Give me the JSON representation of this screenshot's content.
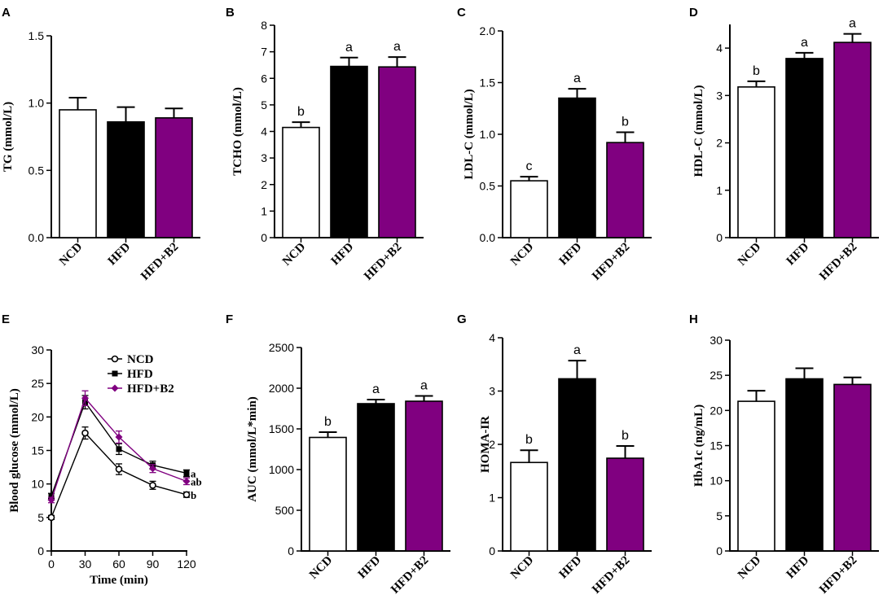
{
  "chart_data": [
    {
      "panel": "A",
      "type": "bar",
      "categories": [
        "NCD",
        "HFD",
        "HFD+B2"
      ],
      "values": [
        0.95,
        0.86,
        0.89
      ],
      "errors": [
        0.09,
        0.11,
        0.07
      ],
      "letters": [
        "",
        "",
        ""
      ],
      "ylabel": "TG (mmol/L)",
      "ylim": [
        0,
        1.5
      ],
      "yticks": [
        "0.0",
        "0.5",
        "1.0",
        "1.5"
      ],
      "tick_values": [
        0,
        0.5,
        1.0,
        1.5
      ],
      "colors": [
        "#ffffff",
        "#000000",
        "#800080"
      ]
    },
    {
      "panel": "B",
      "type": "bar",
      "categories": [
        "NCD",
        "HFD",
        "HFD+B2"
      ],
      "values": [
        4.15,
        6.45,
        6.43
      ],
      "errors": [
        0.2,
        0.33,
        0.37
      ],
      "letters": [
        "b",
        "a",
        "a"
      ],
      "ylabel": "TCHO (mmol/L)",
      "ylim": [
        0,
        8
      ],
      "yticks": [
        "0",
        "1",
        "2",
        "3",
        "4",
        "5",
        "6",
        "7",
        "8"
      ],
      "tick_values": [
        0,
        1,
        2,
        3,
        4,
        5,
        6,
        7,
        8
      ],
      "colors": [
        "#ffffff",
        "#000000",
        "#800080"
      ]
    },
    {
      "panel": "C",
      "type": "bar",
      "categories": [
        "NCD",
        "HFD",
        "HFD+B2"
      ],
      "values": [
        0.55,
        1.35,
        0.92
      ],
      "errors": [
        0.04,
        0.09,
        0.1
      ],
      "letters": [
        "c",
        "a",
        "b"
      ],
      "ylabel": "LDL-C (mmol/L)",
      "ylim": [
        0,
        2.0
      ],
      "yticks": [
        "0.0",
        "0.5",
        "1.0",
        "1.5",
        "2.0"
      ],
      "tick_values": [
        0,
        0.5,
        1.0,
        1.5,
        2.0
      ],
      "colors": [
        "#ffffff",
        "#000000",
        "#800080"
      ]
    },
    {
      "panel": "D",
      "type": "bar",
      "categories": [
        "NCD",
        "HFD",
        "HFD+B2"
      ],
      "values": [
        3.18,
        3.78,
        4.12
      ],
      "errors": [
        0.12,
        0.12,
        0.18
      ],
      "letters": [
        "b",
        "a",
        "a"
      ],
      "ylabel": "HDL-C (mmol/L)",
      "ylim": [
        0,
        4.5
      ],
      "yticks": [
        "0",
        "1",
        "2",
        "3",
        "4"
      ],
      "tick_values": [
        0,
        1,
        2,
        3,
        4
      ],
      "colors": [
        "#ffffff",
        "#000000",
        "#800080"
      ]
    },
    {
      "panel": "E",
      "type": "line",
      "x": [
        0,
        30,
        60,
        90,
        120
      ],
      "xticks": [
        "0",
        "30",
        "60",
        "90",
        "120"
      ],
      "xlabel": "Time (min)",
      "ylabel": "Blood glucose (mmol/L)",
      "xlim": [
        0,
        120
      ],
      "ylim": [
        0,
        30
      ],
      "yticks": [
        "0",
        "5",
        "10",
        "15",
        "20",
        "25",
        "30"
      ],
      "tick_values": [
        0,
        5,
        10,
        15,
        20,
        25,
        30
      ],
      "series": [
        {
          "name": "NCD",
          "values": [
            5.0,
            17.6,
            12.2,
            9.8,
            8.4
          ],
          "errors": [
            0.3,
            0.9,
            0.8,
            0.6,
            0.4
          ],
          "color": "#000000",
          "marker": "circle-open",
          "end_letter": "b"
        },
        {
          "name": "HFD",
          "values": [
            8.2,
            22.2,
            15.2,
            12.8,
            11.6
          ],
          "errors": [
            0.4,
            1.0,
            0.8,
            0.6,
            0.5
          ],
          "color": "#000000",
          "marker": "square",
          "end_letter": "a"
        },
        {
          "name": "HFD+B2",
          "values": [
            7.6,
            22.8,
            17.0,
            12.3,
            10.4
          ],
          "errors": [
            0.4,
            1.1,
            0.9,
            0.6,
            0.5
          ],
          "color": "#800080",
          "marker": "diamond",
          "end_letter": "ab"
        }
      ]
    },
    {
      "panel": "F",
      "type": "bar",
      "categories": [
        "NCD",
        "HFD",
        "HFD+B2"
      ],
      "values": [
        1395,
        1810,
        1840
      ],
      "errors": [
        65,
        50,
        65
      ],
      "letters": [
        "b",
        "a",
        "a"
      ],
      "ylabel": "AUC (mmol/L*min)",
      "ylim": [
        0,
        2500
      ],
      "yticks": [
        "0",
        "500",
        "1000",
        "1500",
        "2000",
        "2500"
      ],
      "tick_values": [
        0,
        500,
        1000,
        1500,
        2000,
        2500
      ],
      "colors": [
        "#ffffff",
        "#000000",
        "#800080"
      ]
    },
    {
      "panel": "G",
      "type": "bar",
      "categories": [
        "NCD",
        "HFD",
        "HFD+B2"
      ],
      "values": [
        1.66,
        3.23,
        1.74
      ],
      "errors": [
        0.23,
        0.34,
        0.23
      ],
      "letters": [
        "b",
        "a",
        "b"
      ],
      "ylabel": "HOMA-IR",
      "ylim": [
        0,
        4
      ],
      "yticks": [
        "0",
        "1",
        "2",
        "3",
        "4"
      ],
      "tick_values": [
        0,
        1,
        2,
        3,
        4
      ],
      "colors": [
        "#ffffff",
        "#000000",
        "#800080"
      ]
    },
    {
      "panel": "H",
      "type": "bar",
      "categories": [
        "NCD",
        "HFD",
        "HFD+B2"
      ],
      "values": [
        21.3,
        24.5,
        23.7
      ],
      "errors": [
        1.5,
        1.5,
        1.0
      ],
      "letters": [
        "",
        "",
        ""
      ],
      "ylabel": "HbA1c (ng/mL)",
      "ylim": [
        0,
        30
      ],
      "yticks": [
        "0",
        "5",
        "10",
        "15",
        "20",
        "25",
        "30"
      ],
      "tick_values": [
        0,
        5,
        10,
        15,
        20,
        25,
        30
      ],
      "colors": [
        "#ffffff",
        "#000000",
        "#800080"
      ]
    }
  ]
}
